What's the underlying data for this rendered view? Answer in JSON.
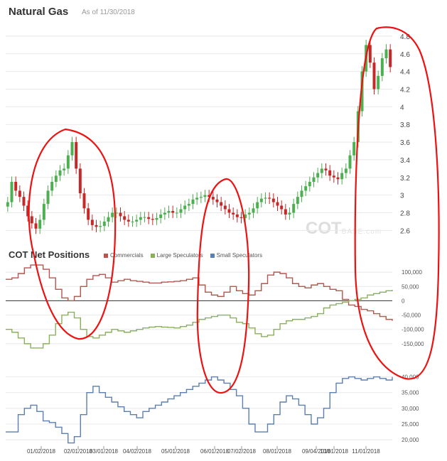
{
  "header": {
    "title": "Natural Gas",
    "as_of": "As of 11/30/2018"
  },
  "cot": {
    "title": "COT Net Positions"
  },
  "watermark": {
    "main": "COT",
    "suffix": "BASE.com"
  },
  "colors": {
    "up": "#4caf50",
    "down": "#c62828",
    "commercials": "#b85450",
    "large": "#8ab05a",
    "small": "#5b7fb0",
    "annotation": "#ee1111",
    "grid": "#e8e8e8"
  },
  "chart_data": [
    {
      "type": "line",
      "title": "Natural Gas",
      "note": "candlestick",
      "ylim": [
        2.45,
        4.92
      ],
      "y_ticks": [
        "2.6",
        "2.8",
        "3",
        "3.2",
        "3.4",
        "3.6",
        "3.8",
        "4",
        "4.2",
        "4.4",
        "4.6",
        "4.8"
      ],
      "series": [
        {
          "values": [
            2.92,
            3.15,
            3.05,
            2.98,
            2.88,
            2.76,
            2.68,
            2.62,
            2.72,
            2.9,
            3.05,
            3.15,
            3.22,
            3.28,
            3.3,
            3.45,
            3.6,
            3.3,
            3.02,
            2.85,
            2.72,
            2.66,
            2.64,
            2.65,
            2.7,
            2.75,
            2.8,
            2.8,
            2.76,
            2.72,
            2.7,
            2.7,
            2.72,
            2.75,
            2.75,
            2.73,
            2.72,
            2.74,
            2.78,
            2.8,
            2.82,
            2.8,
            2.8,
            2.84,
            2.88,
            2.9,
            2.95,
            2.97,
            2.98,
            3.0,
            2.98,
            2.95,
            2.92,
            2.88,
            2.84,
            2.8,
            2.78,
            2.75,
            2.74,
            2.78,
            2.8,
            2.85,
            2.92,
            2.96,
            2.97,
            2.96,
            2.92,
            2.88,
            2.84,
            2.78,
            2.8,
            2.9,
            2.98,
            3.05,
            3.1,
            3.15,
            3.2,
            3.25,
            3.3,
            3.28,
            3.22,
            3.2,
            3.18,
            3.25,
            3.3,
            3.45,
            3.6,
            3.95,
            4.4,
            4.7,
            4.5,
            4.2,
            4.35,
            4.55,
            4.65,
            4.45
          ]
        }
      ]
    },
    {
      "type": "line",
      "title": "COT Net Positions",
      "legend": [
        "Commercials",
        "Large Speculators",
        "Small Speculators"
      ],
      "x_ticks": [
        "01/02/2018",
        "02/01/2018",
        "03/01/2018",
        "04/02/2018",
        "05/01/2018",
        "06/01/2018",
        "07/02/2018",
        "08/01/2018",
        "09/04/2018",
        "10/01/2018",
        "11/01/2018"
      ],
      "y_ticks_upper": [
        "100,000",
        "50,000",
        "0",
        "-50,000",
        "-100,000",
        "-150,000"
      ],
      "ylim_upper": [
        -190000,
        140000
      ],
      "y_ticks_lower": [
        "40,000",
        "35,000",
        "30,000",
        "25,000",
        "20,000"
      ],
      "ylim_lower": [
        18000,
        46000
      ],
      "series": [
        {
          "name": "Commercials",
          "values": [
            75000,
            80000,
            95000,
            115000,
            125000,
            125000,
            110000,
            80000,
            40000,
            10000,
            0,
            15000,
            50000,
            75000,
            88000,
            92000,
            80000,
            65000,
            70000,
            75000,
            70000,
            68000,
            65000,
            62000,
            62000,
            65000,
            66000,
            68000,
            70000,
            75000,
            80000,
            55000,
            30000,
            20000,
            15000,
            30000,
            50000,
            35000,
            25000,
            20000,
            35000,
            60000,
            90000,
            100000,
            95000,
            80000,
            60000,
            50000,
            45000,
            55000,
            60000,
            50000,
            40000,
            35000,
            5000,
            -15000,
            -20000,
            -30000,
            -35000,
            -45000,
            -55000,
            -65000,
            -70000
          ]
        },
        {
          "name": "Large Speculators",
          "values": [
            -100000,
            -110000,
            -130000,
            -150000,
            -165000,
            -165000,
            -150000,
            -120000,
            -80000,
            -50000,
            -40000,
            -60000,
            -100000,
            -125000,
            -130000,
            -120000,
            -110000,
            -100000,
            -105000,
            -110000,
            -105000,
            -100000,
            -95000,
            -92000,
            -90000,
            -92000,
            -93000,
            -95000,
            -90000,
            -85000,
            -75000,
            -65000,
            -60000,
            -55000,
            -50000,
            -50000,
            -60000,
            -75000,
            -80000,
            -95000,
            -115000,
            -125000,
            -120000,
            -100000,
            -80000,
            -70000,
            -65000,
            -65000,
            -60000,
            -55000,
            -45000,
            -25000,
            -15000,
            -10000,
            -5000,
            0,
            5000,
            10000,
            20000,
            25000,
            30000,
            35000,
            38000
          ]
        },
        {
          "name": "Small Speculators",
          "values": [
            22500,
            22500,
            28000,
            30000,
            31000,
            29000,
            26000,
            25500,
            24000,
            22000,
            19000,
            21000,
            28000,
            35000,
            37000,
            35000,
            33500,
            32000,
            30500,
            29000,
            28000,
            27000,
            29000,
            30000,
            31000,
            32000,
            33000,
            34000,
            35000,
            36000,
            37000,
            38000,
            39000,
            40000,
            39000,
            38000,
            36000,
            34000,
            30000,
            25000,
            22500,
            22500,
            25000,
            28000,
            32000,
            34000,
            33000,
            31000,
            28000,
            25000,
            27000,
            30000,
            35000,
            38000,
            39500,
            40000,
            39500,
            39000,
            39500,
            40000,
            39500,
            39000,
            40000
          ]
        }
      ]
    }
  ]
}
